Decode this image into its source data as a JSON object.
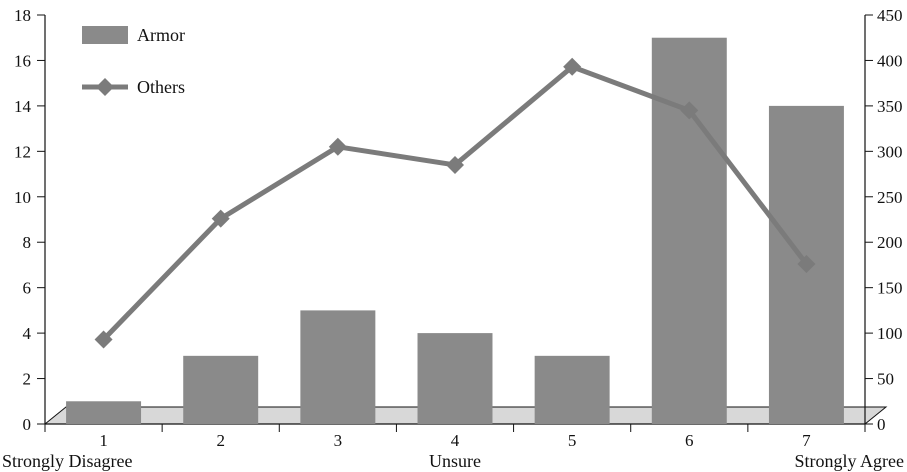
{
  "chart_data": {
    "type": "bar",
    "categories": [
      "1",
      "2",
      "3",
      "4",
      "5",
      "6",
      "7"
    ],
    "category_descriptions": {
      "first": "Strongly Disagree",
      "middle": "Unsure",
      "last": "Strongly Agree"
    },
    "series": [
      {
        "name": "Armor",
        "type": "bar",
        "axis": "left",
        "values": [
          1,
          3,
          5,
          4,
          3,
          17,
          14
        ],
        "color": "#8a8a8a"
      },
      {
        "name": "Others",
        "type": "line",
        "marker": "diamond",
        "axis": "right",
        "values": [
          93,
          226,
          305,
          285,
          393,
          345,
          176
        ],
        "color": "#7b7b7b"
      }
    ],
    "y_left": {
      "label": "",
      "ylim": [
        0,
        18
      ],
      "ticks": [
        0,
        2,
        4,
        6,
        8,
        10,
        12,
        14,
        16,
        18
      ]
    },
    "y_right": {
      "label": "",
      "ylim": [
        0,
        450
      ],
      "ticks": [
        0,
        50,
        100,
        150,
        200,
        250,
        300,
        350,
        400,
        450
      ]
    },
    "xlabel": "",
    "title": "",
    "legend_position": "top-left",
    "grid": false,
    "floor_color": "#d8d8d8"
  }
}
